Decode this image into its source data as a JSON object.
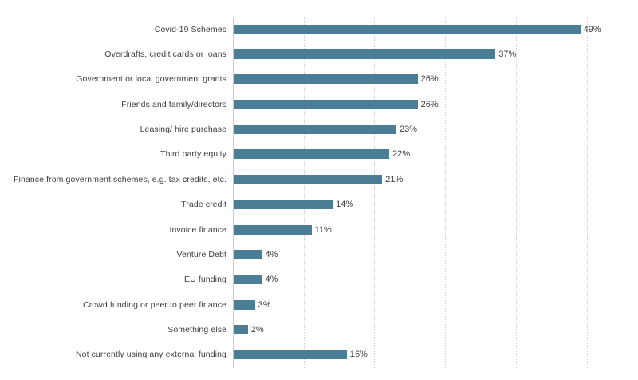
{
  "chart_data": {
    "type": "bar",
    "orientation": "horizontal",
    "title": "",
    "xlabel": "",
    "ylabel": "",
    "xlim": [
      0,
      50
    ],
    "gridlines_pct": [
      10,
      20,
      30,
      40,
      50
    ],
    "grid": true,
    "legend": false,
    "categories": [
      "Covid-19 Schemes",
      "Overdrafts, credit cards or loans",
      "Government or local government grants",
      "Friends and family/directors",
      "Leasing/ hire purchase",
      "Third party equity",
      "Finance from government schemes, e.g. tax credits, etc.",
      "Trade credit",
      "Invoice finance",
      "Venture Debt",
      "EU funding",
      "Crowd funding or peer to peer finance",
      "Something else",
      "Not currently using any external funding"
    ],
    "values": [
      49,
      37,
      26,
      26,
      23,
      22,
      21,
      14,
      11,
      4,
      4,
      3,
      2,
      16
    ],
    "value_labels": [
      "49%",
      "37%",
      "26%",
      "26%",
      "23%",
      "22%",
      "21%",
      "14%",
      "11%",
      "4%",
      "4%",
      "3%",
      "2%",
      "16%"
    ],
    "colors": {
      "bar": "#4b7e96",
      "text": "#3d3d3d",
      "gridline": "#d2d2d2",
      "axis": "#c9c9c9",
      "background": "#ffffff"
    }
  }
}
